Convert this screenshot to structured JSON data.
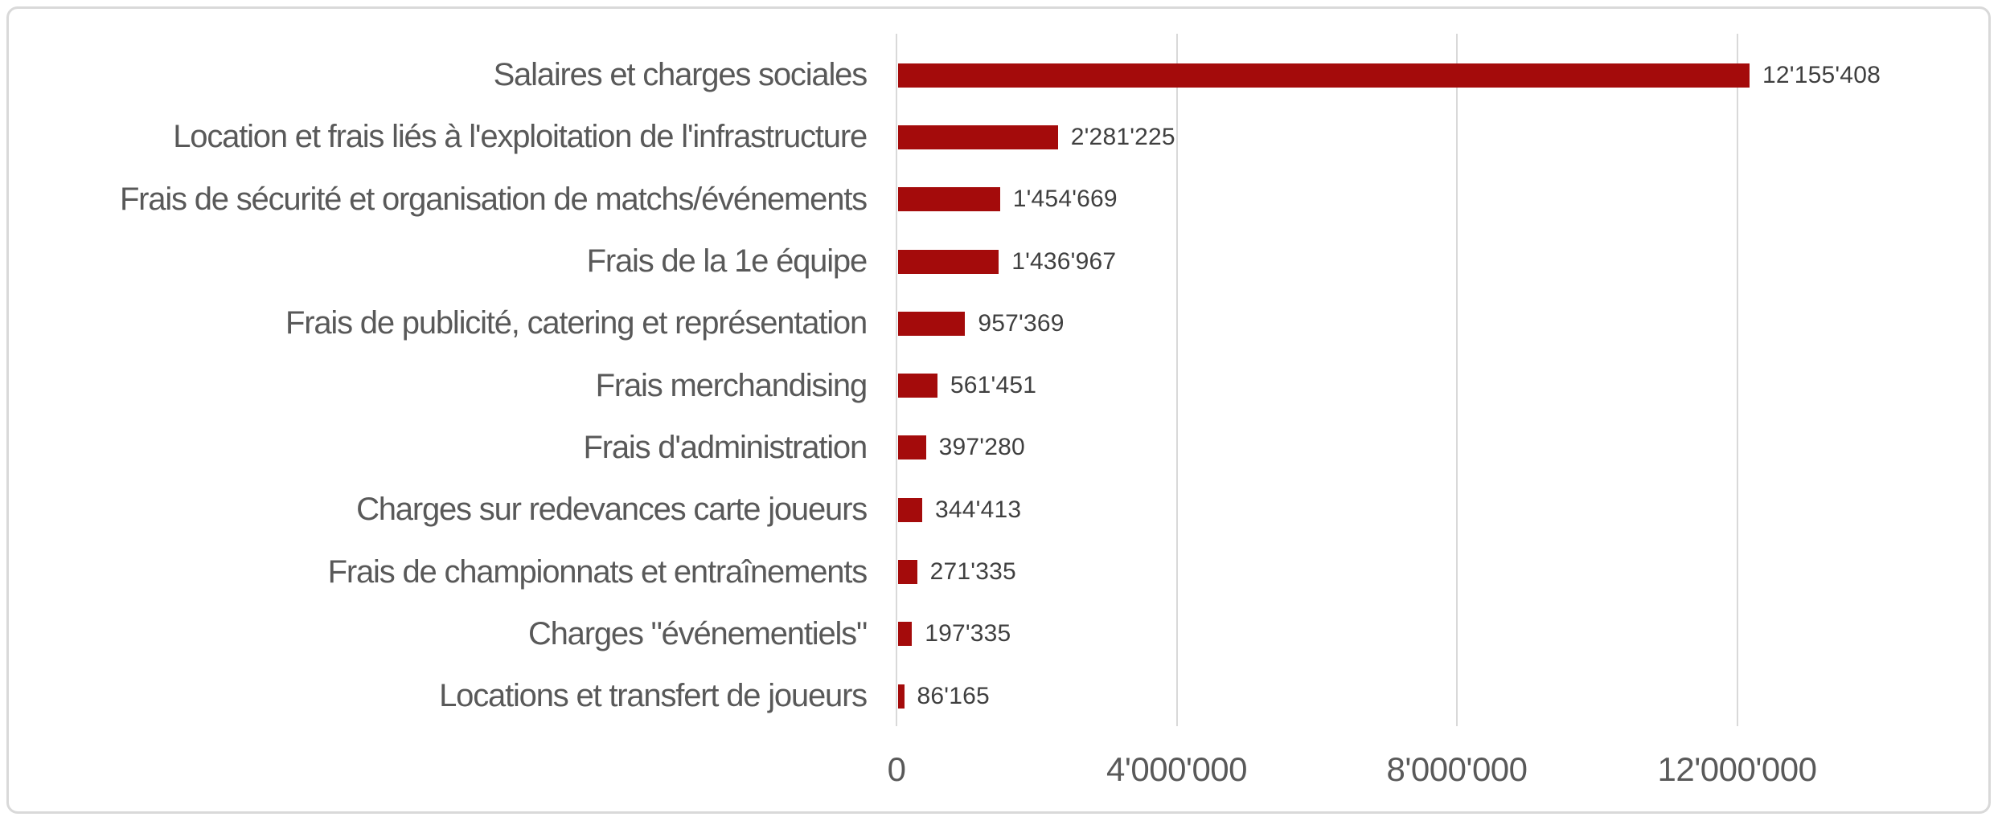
{
  "chart_data": {
    "type": "bar",
    "orientation": "horizontal",
    "title": "",
    "xlabel": "",
    "ylabel": "",
    "grid": "vertical-only",
    "legend": "none",
    "categories": [
      "Salaires et charges sociales",
      "Location et frais liés à l'exploitation de l'infrastructure",
      "Frais de sécurité et organisation de matchs/événements",
      "Frais de la 1e équipe",
      "Frais de publicité, catering et représentation",
      "Frais merchandising",
      "Frais d'administration",
      "Charges sur redevances carte joueurs",
      "Frais de championnats et entraînements",
      "Charges \"événementiels\"",
      "Locations et transfert de joueurs"
    ],
    "values": [
      12155408,
      2281225,
      1454669,
      1436967,
      957369,
      561451,
      397280,
      344413,
      271335,
      197335,
      86165
    ],
    "value_labels": [
      "12'155'408",
      "2'281'225",
      "1'454'669",
      "1'436'967",
      "957'369",
      "561'451",
      "397'280",
      "344'413",
      "271'335",
      "197'335",
      "86'165"
    ],
    "x_axis": {
      "tick_values": [
        0,
        4000000,
        8000000,
        12000000
      ],
      "tick_labels": [
        "0",
        "4'000'000",
        "8'000'000",
        "12'000'000"
      ],
      "min": 0,
      "max": 15000000
    },
    "colors": {
      "bar": "#A40B0B",
      "category_text": "#595959",
      "value_text": "#3F3F3F",
      "axis_text": "#595959",
      "gridline": "#D9D9D9",
      "frame_border": "#D9D9D9",
      "background": "#FFFFFF"
    }
  }
}
